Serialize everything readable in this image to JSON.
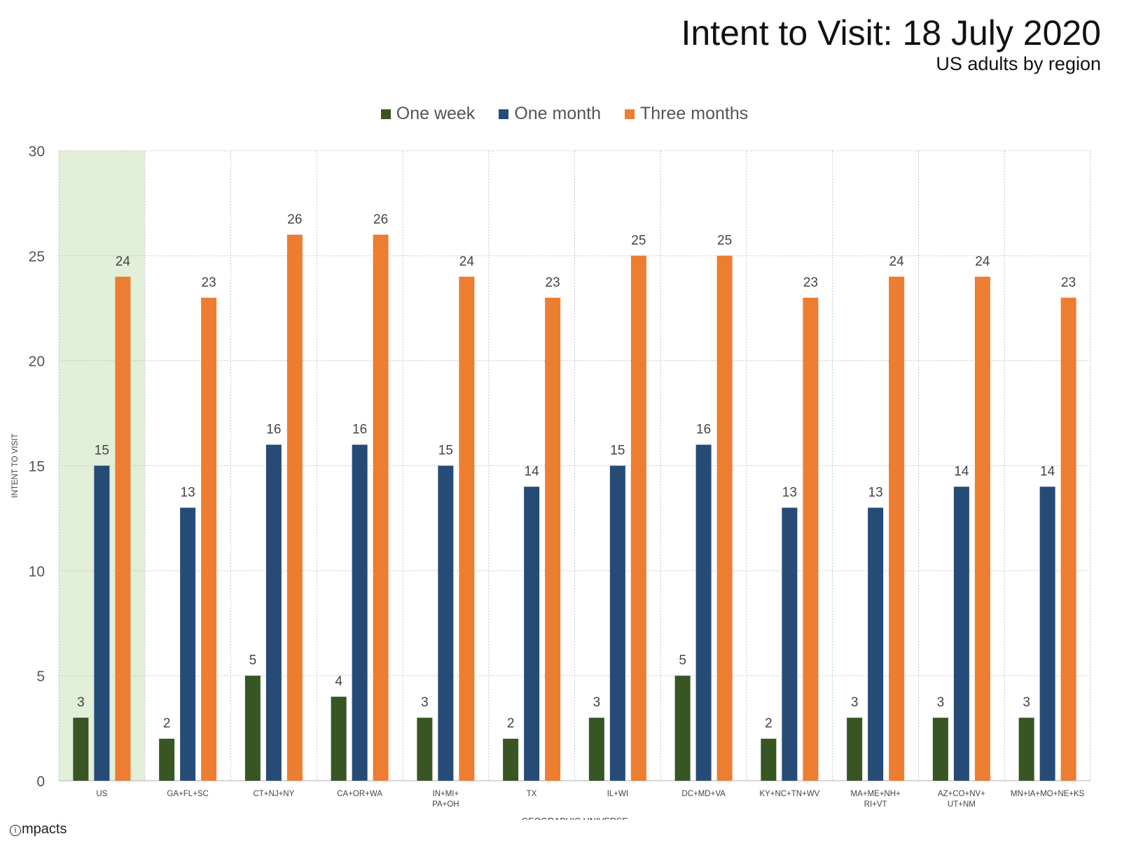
{
  "chart_data": {
    "type": "bar",
    "title": "Intent to Visit: 18 July 2020",
    "subtitle": "US adults by region",
    "xlabel": "GEOGRAPHIC UNIVERSE",
    "ylabel": "INTENT TO VISIT",
    "ylim": [
      0,
      30
    ],
    "yticks": [
      0,
      5,
      10,
      15,
      20,
      25,
      30
    ],
    "grid": true,
    "legend_position": "top-center",
    "highlight_category": "US",
    "highlight_color": "#e2efd9",
    "categories": [
      [
        "US"
      ],
      [
        "GA+FL+SC"
      ],
      [
        "CT+NJ+NY"
      ],
      [
        "CA+OR+WA"
      ],
      [
        "IN+MI+",
        "PA+OH"
      ],
      [
        "TX"
      ],
      [
        "IL+WI"
      ],
      [
        "DC+MD+VA"
      ],
      [
        "KY+NC+TN+WV"
      ],
      [
        "MA+ME+NH+",
        "RI+VT"
      ],
      [
        "AZ+CO+NV+",
        "UT+NM"
      ],
      [
        "MN+IA+MO+NE+KS"
      ]
    ],
    "series": [
      {
        "name": "One week",
        "color": "#375623",
        "values": [
          3,
          2,
          5,
          4,
          3,
          2,
          3,
          5,
          2,
          3,
          3,
          3
        ]
      },
      {
        "name": "One month",
        "color": "#264b77",
        "values": [
          15,
          13,
          16,
          16,
          15,
          14,
          15,
          16,
          13,
          13,
          14,
          14
        ]
      },
      {
        "name": "Three months",
        "color": "#ed7d31",
        "values": [
          24,
          23,
          26,
          26,
          24,
          23,
          25,
          25,
          23,
          24,
          24,
          23
        ]
      }
    ]
  },
  "branding": {
    "logo_icon": "i",
    "logo_text": "mpacts"
  }
}
